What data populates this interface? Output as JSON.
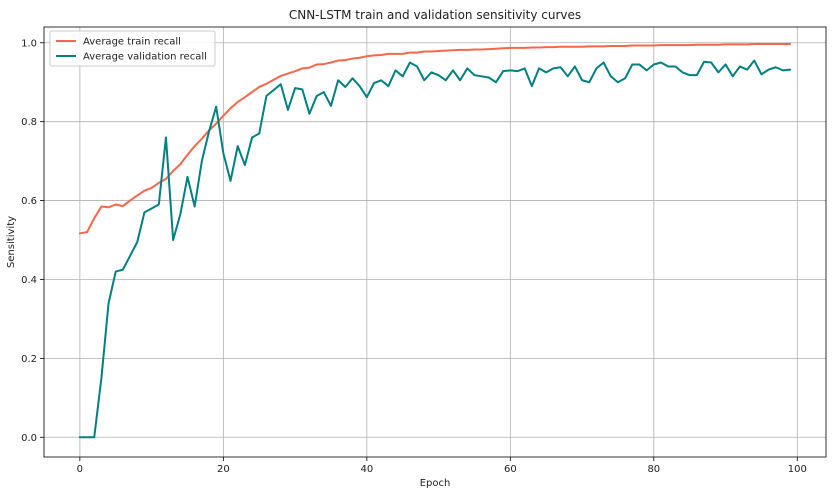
{
  "chart_data": {
    "type": "line",
    "title": "CNN-LSTM train and validation sensitivity curves",
    "xlabel": "Epoch",
    "ylabel": "Sensitivity",
    "xlim": [
      -5,
      104
    ],
    "ylim": [
      -0.05,
      1.04
    ],
    "xticks": [
      0,
      20,
      40,
      60,
      80,
      100
    ],
    "xtick_labels": [
      "0",
      "20",
      "40",
      "60",
      "80",
      "100"
    ],
    "yticks": [
      0.0,
      0.2,
      0.4,
      0.6,
      0.8,
      1.0
    ],
    "ytick_labels": [
      "0.0",
      "0.2",
      "0.4",
      "0.6",
      "0.8",
      "1.0"
    ],
    "grid": true,
    "legend_position": "top-left",
    "x": [
      0,
      1,
      2,
      3,
      4,
      5,
      6,
      7,
      8,
      9,
      10,
      11,
      12,
      13,
      14,
      15,
      16,
      17,
      18,
      19,
      20,
      21,
      22,
      23,
      24,
      25,
      26,
      27,
      28,
      29,
      30,
      31,
      32,
      33,
      34,
      35,
      36,
      37,
      38,
      39,
      40,
      41,
      42,
      43,
      44,
      45,
      46,
      47,
      48,
      49,
      50,
      51,
      52,
      53,
      54,
      55,
      56,
      57,
      58,
      59,
      60,
      61,
      62,
      63,
      64,
      65,
      66,
      67,
      68,
      69,
      70,
      71,
      72,
      73,
      74,
      75,
      76,
      77,
      78,
      79,
      80,
      81,
      82,
      83,
      84,
      85,
      86,
      87,
      88,
      89,
      90,
      91,
      92,
      93,
      94,
      95,
      96,
      97,
      98,
      99
    ],
    "series": [
      {
        "name": "Average train recall",
        "color": "#f4674a",
        "values": [
          0.517,
          0.52,
          0.555,
          0.585,
          0.583,
          0.59,
          0.586,
          0.6,
          0.613,
          0.625,
          0.632,
          0.645,
          0.655,
          0.675,
          0.692,
          0.716,
          0.738,
          0.757,
          0.778,
          0.795,
          0.815,
          0.834,
          0.85,
          0.862,
          0.875,
          0.888,
          0.896,
          0.906,
          0.916,
          0.922,
          0.928,
          0.935,
          0.937,
          0.945,
          0.946,
          0.95,
          0.955,
          0.956,
          0.96,
          0.962,
          0.966,
          0.968,
          0.969,
          0.972,
          0.972,
          0.972,
          0.975,
          0.975,
          0.978,
          0.978,
          0.979,
          0.98,
          0.981,
          0.982,
          0.982,
          0.983,
          0.983,
          0.984,
          0.985,
          0.986,
          0.987,
          0.987,
          0.987,
          0.988,
          0.988,
          0.989,
          0.989,
          0.99,
          0.99,
          0.99,
          0.99,
          0.991,
          0.991,
          0.991,
          0.992,
          0.992,
          0.992,
          0.993,
          0.993,
          0.993,
          0.993,
          0.994,
          0.994,
          0.994,
          0.994,
          0.994,
          0.995,
          0.995,
          0.995,
          0.995,
          0.996,
          0.996,
          0.996,
          0.996,
          0.997,
          0.997,
          0.997,
          0.997,
          0.997,
          0.997
        ]
      },
      {
        "name": "Average validation recall",
        "color": "#008080",
        "values": [
          0.0,
          0.0,
          0.0,
          0.15,
          0.34,
          0.42,
          0.425,
          0.46,
          0.495,
          0.57,
          0.58,
          0.59,
          0.76,
          0.5,
          0.565,
          0.66,
          0.585,
          0.7,
          0.775,
          0.838,
          0.72,
          0.65,
          0.738,
          0.69,
          0.76,
          0.77,
          0.865,
          0.88,
          0.895,
          0.83,
          0.885,
          0.882,
          0.82,
          0.865,
          0.875,
          0.84,
          0.905,
          0.888,
          0.91,
          0.89,
          0.862,
          0.898,
          0.905,
          0.89,
          0.93,
          0.915,
          0.95,
          0.94,
          0.905,
          0.925,
          0.918,
          0.905,
          0.93,
          0.905,
          0.935,
          0.918,
          0.915,
          0.912,
          0.9,
          0.928,
          0.93,
          0.928,
          0.935,
          0.89,
          0.935,
          0.925,
          0.935,
          0.938,
          0.915,
          0.94,
          0.905,
          0.9,
          0.935,
          0.95,
          0.915,
          0.9,
          0.91,
          0.945,
          0.945,
          0.93,
          0.945,
          0.95,
          0.94,
          0.94,
          0.925,
          0.918,
          0.918,
          0.952,
          0.95,
          0.925,
          0.945,
          0.915,
          0.94,
          0.932,
          0.955,
          0.92,
          0.932,
          0.938,
          0.93,
          0.932
        ]
      }
    ]
  }
}
